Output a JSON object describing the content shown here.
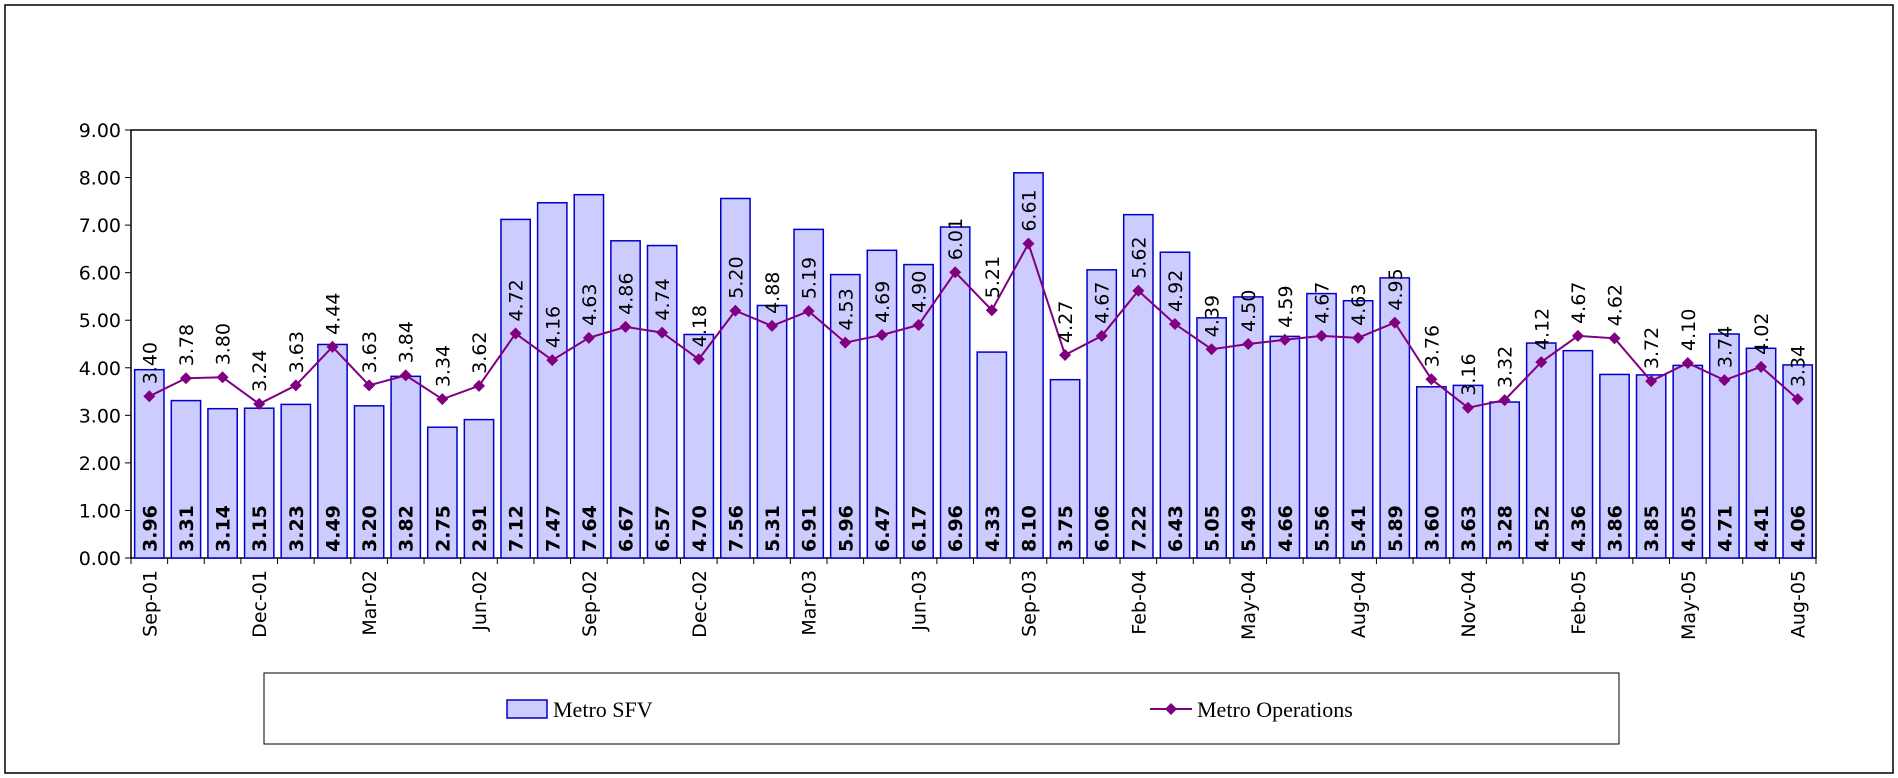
{
  "chart_data": {
    "type": "bar-line",
    "categories": [
      "Sep-01",
      null,
      null,
      "Dec-01",
      null,
      null,
      "Mar-02",
      null,
      null,
      "Jun-02",
      null,
      null,
      "Sep-02",
      null,
      null,
      "Dec-02",
      null,
      null,
      "Mar-03",
      null,
      null,
      "Jun-03",
      null,
      null,
      "Sep-03",
      null,
      null,
      "Feb-04",
      null,
      null,
      "May-04",
      null,
      null,
      "Aug-04",
      null,
      null,
      "Nov-04",
      null,
      null,
      "Feb-05",
      null,
      null,
      "May-05",
      null,
      null,
      "Aug-05"
    ],
    "series": [
      {
        "name": "Metro SFV",
        "type": "bar",
        "color": "#ccccff",
        "edge": "#0000cc",
        "values": [
          3.96,
          3.31,
          3.14,
          3.15,
          3.23,
          4.49,
          3.2,
          3.82,
          2.75,
          2.91,
          7.12,
          7.47,
          7.64,
          6.67,
          6.57,
          4.7,
          7.56,
          5.31,
          6.91,
          5.96,
          6.47,
          6.17,
          6.96,
          4.33,
          8.1,
          3.75,
          6.06,
          7.22,
          6.43,
          5.05,
          5.49,
          4.66,
          5.56,
          5.41,
          5.89,
          3.6,
          3.63,
          3.28,
          4.52,
          4.36,
          3.86,
          3.85,
          4.05,
          4.71,
          4.41,
          4.06
        ],
        "value_labels": [
          "3.96",
          "3.31",
          "3.14",
          "3.15",
          "3.23",
          "4.49",
          "3.20",
          "3.82",
          "2.75",
          "2.91",
          "7.12",
          "7.47",
          "7.64",
          "6.67",
          "6.57",
          "4.70",
          "7.56",
          "5.31",
          "6.91",
          "5.96",
          "6.47",
          "6.17",
          "6.96",
          "4.33",
          "8.10",
          "3.75",
          "6.06",
          "7.22",
          "6.43",
          "5.05",
          "5.49",
          "4.66",
          "5.56",
          "5.41",
          "5.89",
          "3.60",
          "3.63",
          "3.28",
          "4.52",
          "4.36",
          "3.86",
          "3.85",
          "4.05",
          "4.71",
          "4.41",
          "4.06"
        ]
      },
      {
        "name": "Metro Operations",
        "type": "line",
        "color": "#800080",
        "values": [
          3.4,
          3.78,
          3.8,
          3.24,
          3.63,
          4.44,
          3.63,
          3.84,
          3.34,
          3.62,
          4.72,
          4.16,
          4.63,
          4.86,
          4.74,
          4.18,
          5.2,
          4.88,
          5.19,
          4.53,
          4.69,
          4.9,
          6.01,
          5.21,
          6.61,
          4.27,
          4.67,
          5.62,
          4.92,
          4.39,
          4.5,
          4.59,
          4.67,
          4.63,
          4.95,
          3.76,
          3.16,
          3.32,
          4.12,
          4.67,
          4.62,
          3.72,
          4.1,
          3.74,
          4.02,
          3.34
        ],
        "value_labels": [
          "3.40",
          "3.78",
          "3.80",
          "3.24",
          "3.63",
          "4.44",
          "3.63",
          "3.84",
          "3.34",
          "3.62",
          "4.72",
          "4.16",
          "4.63",
          "4.86",
          "4.74",
          "4.18",
          "5.20",
          "4.88",
          "5.19",
          "4.53",
          "4.69",
          "4.90",
          "6.01",
          "5.21",
          "6.61",
          "4.27",
          "4.67",
          "5.62",
          "4.92",
          "4.39",
          "4.50",
          "4.59",
          "4.67",
          "4.63",
          "4.95",
          "3.76",
          "3.16",
          "3.32",
          "4.12",
          "4.67",
          "4.62",
          "3.72",
          "4.10",
          "3.74",
          "4.02",
          "3.34"
        ]
      }
    ],
    "ylim": [
      0,
      9
    ],
    "yticks": [
      {
        "value": 0,
        "label": "0.00"
      },
      {
        "value": 1,
        "label": "1.00"
      },
      {
        "value": 2,
        "label": "2.00"
      },
      {
        "value": 3,
        "label": "3.00"
      },
      {
        "value": 4,
        "label": "4.00"
      },
      {
        "value": 5,
        "label": "5.00"
      },
      {
        "value": 6,
        "label": "6.00"
      },
      {
        "value": 7,
        "label": "7.00"
      },
      {
        "value": 8,
        "label": "8.00"
      },
      {
        "value": 9,
        "label": "9.00"
      }
    ],
    "grid": false,
    "legend": "bottom"
  }
}
